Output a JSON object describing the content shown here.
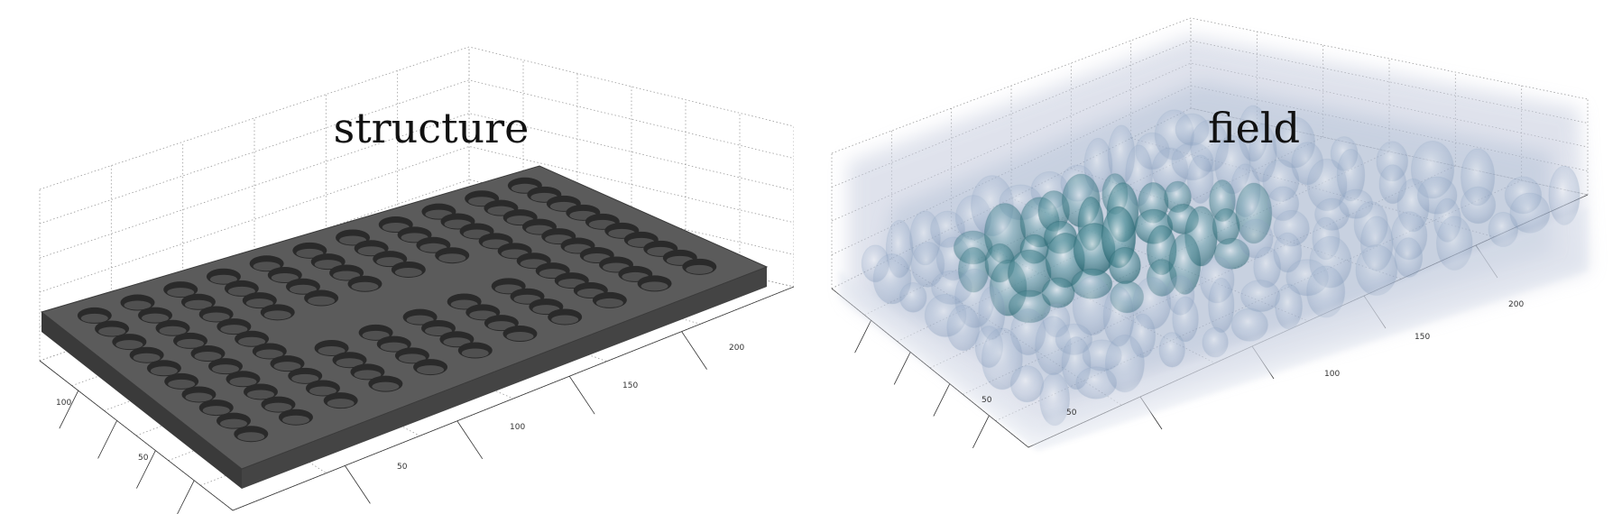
{
  "panels": {
    "structure": {
      "title": "structure",
      "ticks": {
        "left_edge": [
          "100",
          "50"
        ],
        "front_edge": [
          "50",
          "100",
          "150",
          "200"
        ]
      },
      "colors": {
        "plate": "#4d4d4d",
        "plate_top": "#5b5b5b",
        "plate_side": "#3a3a3a",
        "hole": "#2a2a2a"
      },
      "hole_rows": 10,
      "hole_cols": 11
    },
    "field": {
      "title": "field",
      "ticks": {
        "left_edge": [
          "50"
        ],
        "front_edge": [
          "50",
          "100",
          "150",
          "200"
        ]
      },
      "colors": {
        "haze": "#c6ccde",
        "mid": "#8fa6c4",
        "core": "#2f7f86",
        "deep": "#1f5f6a"
      }
    }
  }
}
